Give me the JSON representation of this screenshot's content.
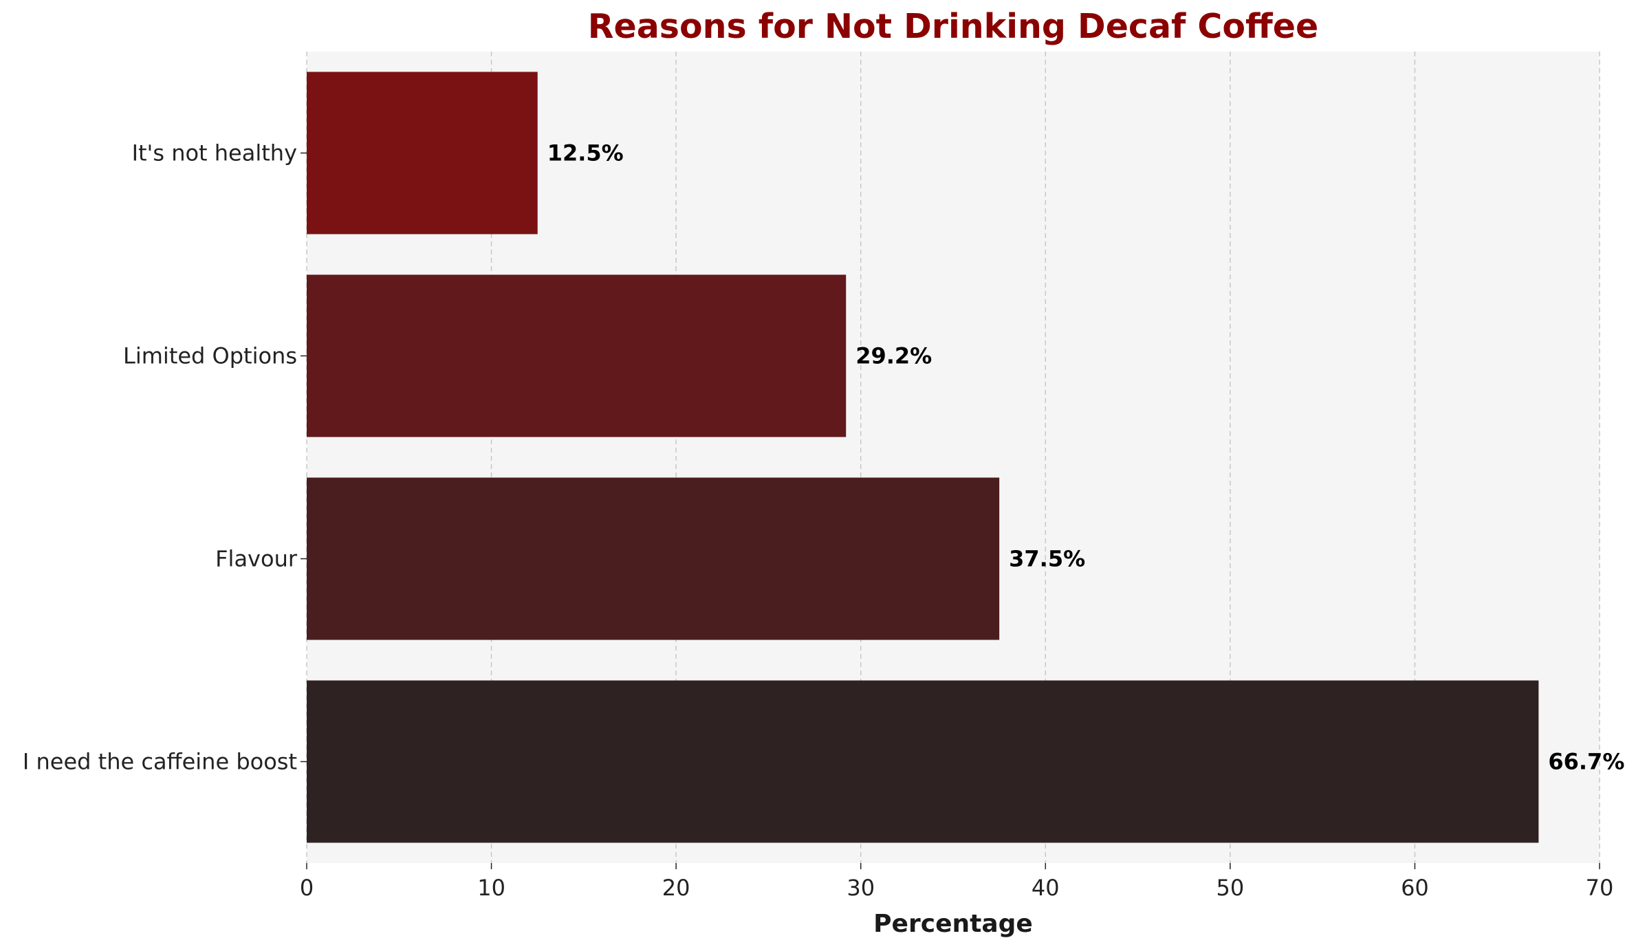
{
  "chart_data": {
    "type": "bar",
    "orientation": "horizontal",
    "title": "Reasons for Not Drinking Decaf Coffee",
    "xlabel": "Percentage",
    "ylabel": "",
    "xlim": [
      0,
      70
    ],
    "xticks": [
      0,
      10,
      20,
      30,
      40,
      50,
      60,
      70
    ],
    "grid": "vertical dashed",
    "categories": [
      "I need the caffeine boost",
      "Flavour",
      "Limited Options",
      "It's not healthy"
    ],
    "values": [
      66.7,
      37.5,
      29.2,
      12.5
    ],
    "data_labels": [
      "66.7%",
      "37.5%",
      "29.2%",
      "12.5%"
    ],
    "colors": [
      "#2e2222",
      "#4a1e1f",
      "#61191c",
      "#7a1213"
    ],
    "title_color": "#8b0000",
    "plot_background": "#f5f5f5"
  }
}
